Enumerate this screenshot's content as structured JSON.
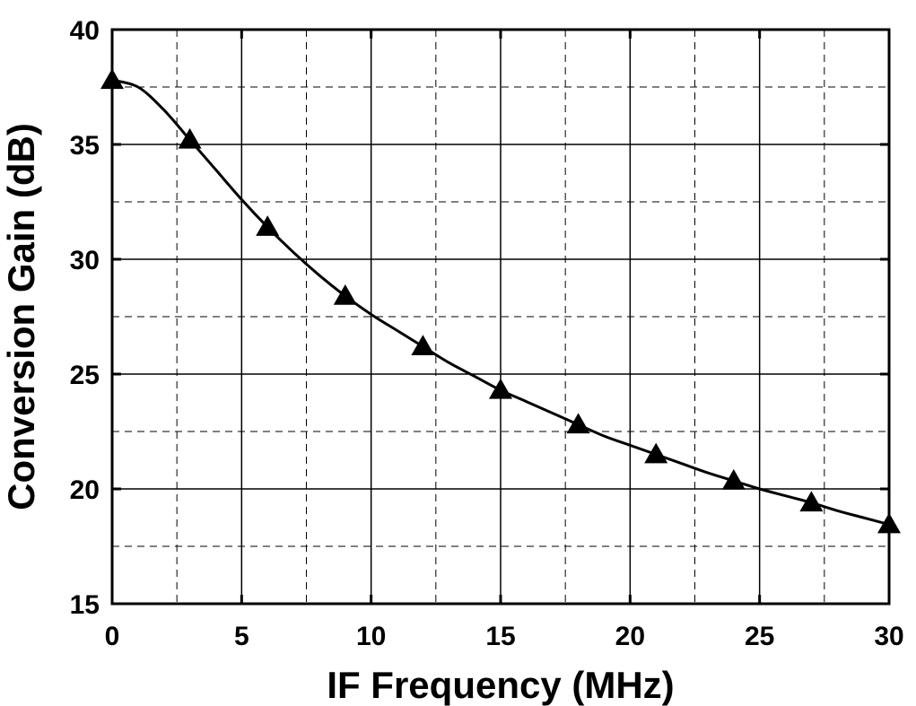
{
  "chart_data": {
    "type": "line",
    "xlabel": "IF Frequency (MHz)",
    "ylabel": "Conversion Gain (dB)",
    "xlim": [
      0,
      30
    ],
    "ylim": [
      15,
      40
    ],
    "xticks": [
      0,
      5,
      10,
      15,
      20,
      25,
      30
    ],
    "yticks": [
      15,
      20,
      25,
      30,
      35,
      40
    ],
    "grid": true,
    "marker": "triangle",
    "colors": {
      "line": "#000000",
      "grid": "#000000",
      "background": "#ffffff"
    },
    "series": [
      {
        "x": [
          0,
          1,
          2,
          3,
          4,
          5,
          6,
          7,
          8,
          9,
          10,
          11,
          12,
          13,
          14,
          15,
          16,
          17,
          18,
          19,
          20,
          21,
          22,
          23,
          24,
          25,
          26,
          27,
          28,
          29,
          30
        ],
        "values": [
          37.8,
          37.5,
          36.5,
          35.2,
          33.9,
          32.6,
          31.4,
          30.3,
          29.3,
          28.4,
          27.6,
          26.9,
          26.2,
          25.5,
          24.9,
          24.3,
          23.8,
          23.3,
          22.8,
          22.3,
          21.9,
          21.5,
          21.1,
          20.7,
          20.35,
          20.0,
          19.7,
          19.4,
          19.05,
          18.75,
          18.45
        ],
        "markers_x": [
          0,
          3,
          6,
          9,
          12,
          15,
          18,
          21,
          24,
          27,
          30
        ]
      }
    ]
  }
}
